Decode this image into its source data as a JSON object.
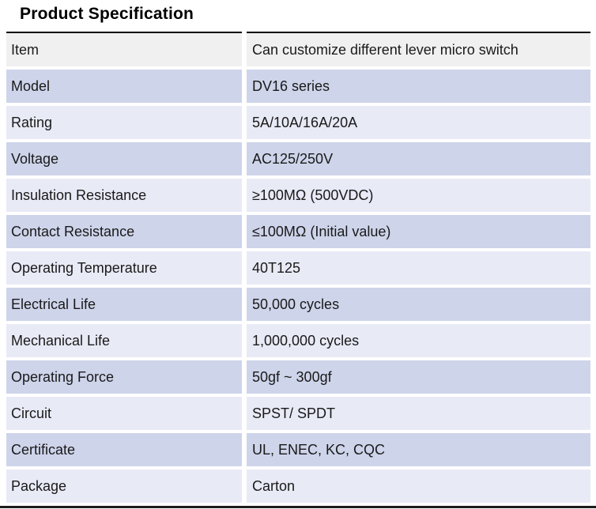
{
  "title": "Product Specification",
  "colors": {
    "header_row_bg": "#f0f0f0",
    "row_dark_bg": "#ced4ea",
    "row_light_bg": "#e8eaf6",
    "top_rule": "#000000",
    "bottom_rule": "#1b1b1b",
    "text": "#1a1a1a"
  },
  "table": {
    "rows": [
      {
        "label": "Item",
        "value": "Can customize different lever micro switch",
        "shade": "header_row_bg"
      },
      {
        "label": "Model",
        "value": "DV16 series",
        "shade": "row_dark_bg"
      },
      {
        "label": "Rating",
        "value": "5A/10A/16A/20A",
        "shade": "row_light_bg"
      },
      {
        "label": "Voltage",
        "value": "AC125/250V",
        "shade": "row_dark_bg"
      },
      {
        "label": "Insulation Resistance",
        "value": "≥100MΩ (500VDC)",
        "shade": "row_light_bg"
      },
      {
        "label": "Contact Resistance",
        "value": "≤100MΩ (Initial value)",
        "shade": "row_dark_bg"
      },
      {
        "label": "Operating Temperature",
        "value": "40T125",
        "shade": "row_light_bg"
      },
      {
        "label": "Electrical Life",
        "value": "50,000 cycles",
        "shade": "row_dark_bg"
      },
      {
        "label": "Mechanical Life",
        "value": "1,000,000 cycles",
        "shade": "row_light_bg"
      },
      {
        "label": "Operating Force",
        "value": "50gf ~ 300gf",
        "shade": "row_dark_bg"
      },
      {
        "label": "Circuit",
        "value": "SPST/ SPDT",
        "shade": "row_light_bg"
      },
      {
        "label": "Certificate",
        "value": "UL, ENEC, KC, CQC",
        "shade": "row_dark_bg"
      },
      {
        "label": "Package",
        "value": "Carton",
        "shade": "row_light_bg"
      }
    ]
  }
}
